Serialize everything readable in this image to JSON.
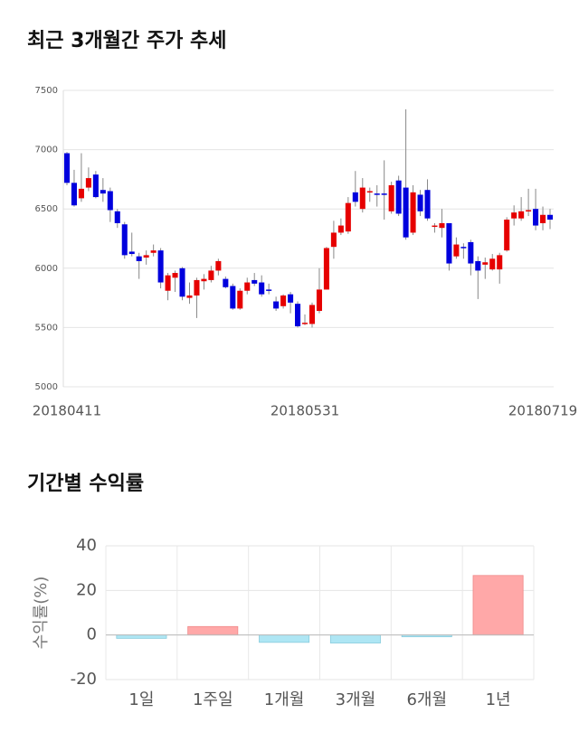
{
  "chart_data": [
    {
      "type": "candlestick",
      "title": "최근 3개월간 주가 추세",
      "categories": [
        "20180411",
        null,
        null,
        null,
        null,
        null,
        null,
        null,
        null,
        null,
        null,
        null,
        null,
        null,
        null,
        null,
        null,
        null,
        null,
        null,
        null,
        null,
        null,
        null,
        null,
        null,
        null,
        null,
        null,
        null,
        null,
        null,
        null,
        "20180531",
        null,
        null,
        null,
        null,
        null,
        null,
        null,
        null,
        null,
        null,
        null,
        null,
        null,
        null,
        null,
        null,
        null,
        null,
        null,
        null,
        null,
        null,
        null,
        null,
        null,
        null,
        null,
        null,
        null,
        null,
        null,
        null,
        "20180719",
        null
      ],
      "open": [
        6970,
        6720,
        6590,
        6680,
        6790,
        6660,
        6650,
        6480,
        6370,
        6140,
        6100,
        6090,
        6130,
        6150,
        5810,
        5920,
        6000,
        5750,
        5770,
        5890,
        5900,
        5980,
        5910,
        5850,
        5660,
        5810,
        5900,
        5880,
        5820,
        5720,
        5680,
        5780,
        5700,
        5530,
        5530,
        5640,
        5820,
        6180,
        6300,
        6310,
        6640,
        6500,
        6640,
        6630,
        6630,
        6480,
        6740,
        6680,
        6300,
        6620,
        6660,
        6350,
        6340,
        6380,
        6100,
        6180,
        6220,
        6060,
        6030,
        5990,
        5990,
        6150,
        6420,
        6420,
        6480,
        6500,
        6380,
        6450
      ],
      "high": [
        6980,
        6830,
        6970,
        6850,
        6820,
        6760,
        6680,
        6500,
        6390,
        6300,
        6130,
        6150,
        6200,
        6170,
        5960,
        5980,
        6010,
        5880,
        5920,
        5950,
        6020,
        6080,
        5930,
        5870,
        5830,
        5920,
        5960,
        5940,
        5870,
        5760,
        5780,
        5800,
        5720,
        5610,
        5710,
        6000,
        6180,
        6400,
        6420,
        6600,
        6820,
        6760,
        6680,
        6700,
        6910,
        6730,
        6780,
        7340,
        6700,
        6660,
        6750,
        6380,
        6500,
        6380,
        6260,
        6210,
        6240,
        6100,
        6090,
        6120,
        6130,
        6430,
        6530,
        6600,
        6670,
        6670,
        6520,
        6500
      ],
      "low": [
        6700,
        6520,
        6560,
        6650,
        6590,
        6560,
        6390,
        6340,
        6080,
        6100,
        5910,
        6030,
        6100,
        5830,
        5730,
        5800,
        5730,
        5700,
        5580,
        5820,
        5880,
        5940,
        5830,
        5650,
        5650,
        5780,
        5850,
        5760,
        5780,
        5640,
        5660,
        5620,
        5500,
        5520,
        5500,
        5620,
        5820,
        6080,
        6280,
        6290,
        6520,
        6470,
        6560,
        6520,
        6410,
        6460,
        6440,
        6240,
        6280,
        6440,
        6400,
        6300,
        6260,
        5980,
        6080,
        6080,
        5940,
        5740,
        5910,
        5980,
        5870,
        6140,
        6360,
        6400,
        6440,
        6320,
        6320,
        6330
      ],
      "close": [
        6720,
        6530,
        6670,
        6760,
        6600,
        6630,
        6490,
        6380,
        6110,
        6120,
        6060,
        6110,
        6150,
        5880,
        5940,
        5960,
        5760,
        5770,
        5900,
        5910,
        5980,
        6060,
        5840,
        5660,
        5810,
        5880,
        5870,
        5780,
        5810,
        5660,
        5770,
        5710,
        5510,
        5540,
        5690,
        5820,
        6170,
        6300,
        6360,
        6550,
        6560,
        6680,
        6650,
        6620,
        6620,
        6700,
        6460,
        6260,
        6640,
        6480,
        6420,
        6360,
        6380,
        6040,
        6200,
        6170,
        6040,
        5980,
        6050,
        6080,
        6110,
        6410,
        6470,
        6480,
        6490,
        6360,
        6450,
        6410
      ],
      "up_color": "#e60000",
      "down_color": "#0000dd",
      "ylim": [
        5000,
        7500
      ],
      "yticks": [
        5000,
        5500,
        6000,
        6500,
        7000,
        7500
      ],
      "grid": true
    },
    {
      "type": "bar",
      "title": "기간별 수익률",
      "y_label": "수익률(%)",
      "categories": [
        "1일",
        "1주일",
        "1개월",
        "3개월",
        "6개월",
        "1년"
      ],
      "values": [
        -1.5,
        3.8,
        -3.3,
        -3.6,
        -0.8,
        26.7
      ],
      "positive_color": "#ffa8a8",
      "negative_color": "#aee6f4",
      "ylim": [
        -20,
        40
      ],
      "yticks": [
        -20,
        0,
        20,
        40
      ],
      "grid": true
    }
  ]
}
